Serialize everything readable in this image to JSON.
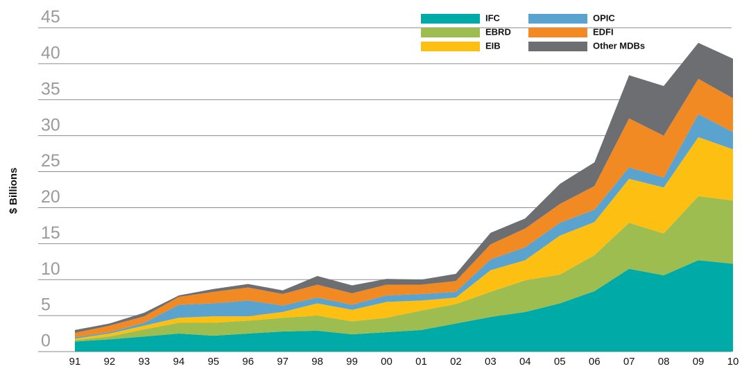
{
  "chart_data": {
    "type": "stacked_area",
    "y_label": "$ Billions",
    "categories": [
      "91",
      "92",
      "93",
      "94",
      "95",
      "96",
      "97",
      "98",
      "99",
      "00",
      "01",
      "02",
      "03",
      "04",
      "05",
      "06",
      "07",
      "08",
      "09",
      "10"
    ],
    "ylim": [
      0,
      45
    ],
    "yticks": [
      0,
      5,
      10,
      15,
      20,
      25,
      30,
      35,
      40,
      45
    ],
    "grid": true,
    "legend": "top-right",
    "series": [
      {
        "name": "IFC",
        "color": "#00aaa6",
        "values": [
          1.4,
          1.7,
          2.1,
          2.5,
          2.2,
          2.5,
          2.8,
          2.9,
          2.4,
          2.7,
          3.0,
          3.9,
          4.8,
          5.5,
          6.7,
          8.4,
          11.5,
          10.6,
          12.7,
          12.2
        ]
      },
      {
        "name": "EBRD",
        "color": "#9dbd50",
        "values": [
          0.2,
          0.4,
          1.0,
          1.5,
          1.8,
          1.8,
          1.9,
          2.1,
          1.8,
          2.0,
          2.7,
          2.7,
          3.5,
          4.4,
          4.0,
          5.0,
          6.4,
          5.8,
          8.9,
          8.8
        ]
      },
      {
        "name": "EIB",
        "color": "#fdc012",
        "values": [
          0.2,
          0.4,
          0.5,
          0.7,
          0.9,
          0.6,
          0.8,
          1.7,
          1.6,
          2.2,
          1.4,
          0.9,
          3.0,
          2.8,
          5.4,
          4.6,
          6.1,
          6.4,
          8.2,
          7.1
        ]
      },
      {
        "name": "OPIC",
        "color": "#5ba3cf",
        "values": [
          0.2,
          0.2,
          0.4,
          1.8,
          1.8,
          2.2,
          0.9,
          0.8,
          0.7,
          0.9,
          0.9,
          0.8,
          1.5,
          1.8,
          1.8,
          1.7,
          1.6,
          1.4,
          3.2,
          2.4
        ]
      },
      {
        "name": "EDFI",
        "color": "#f28a24",
        "values": [
          0.6,
          0.9,
          0.9,
          1.1,
          1.6,
          1.8,
          1.6,
          1.8,
          1.6,
          1.5,
          1.3,
          1.5,
          2.1,
          2.6,
          2.6,
          3.3,
          6.8,
          5.8,
          4.9,
          4.7
        ]
      },
      {
        "name": "Other MDBs",
        "color": "#6d6e71",
        "values": [
          0.4,
          0.3,
          0.5,
          0.2,
          0.4,
          0.5,
          0.5,
          1.2,
          1.1,
          0.8,
          0.7,
          1.0,
          1.6,
          1.4,
          2.8,
          3.3,
          6.0,
          6.9,
          5.0,
          5.5
        ]
      }
    ]
  }
}
